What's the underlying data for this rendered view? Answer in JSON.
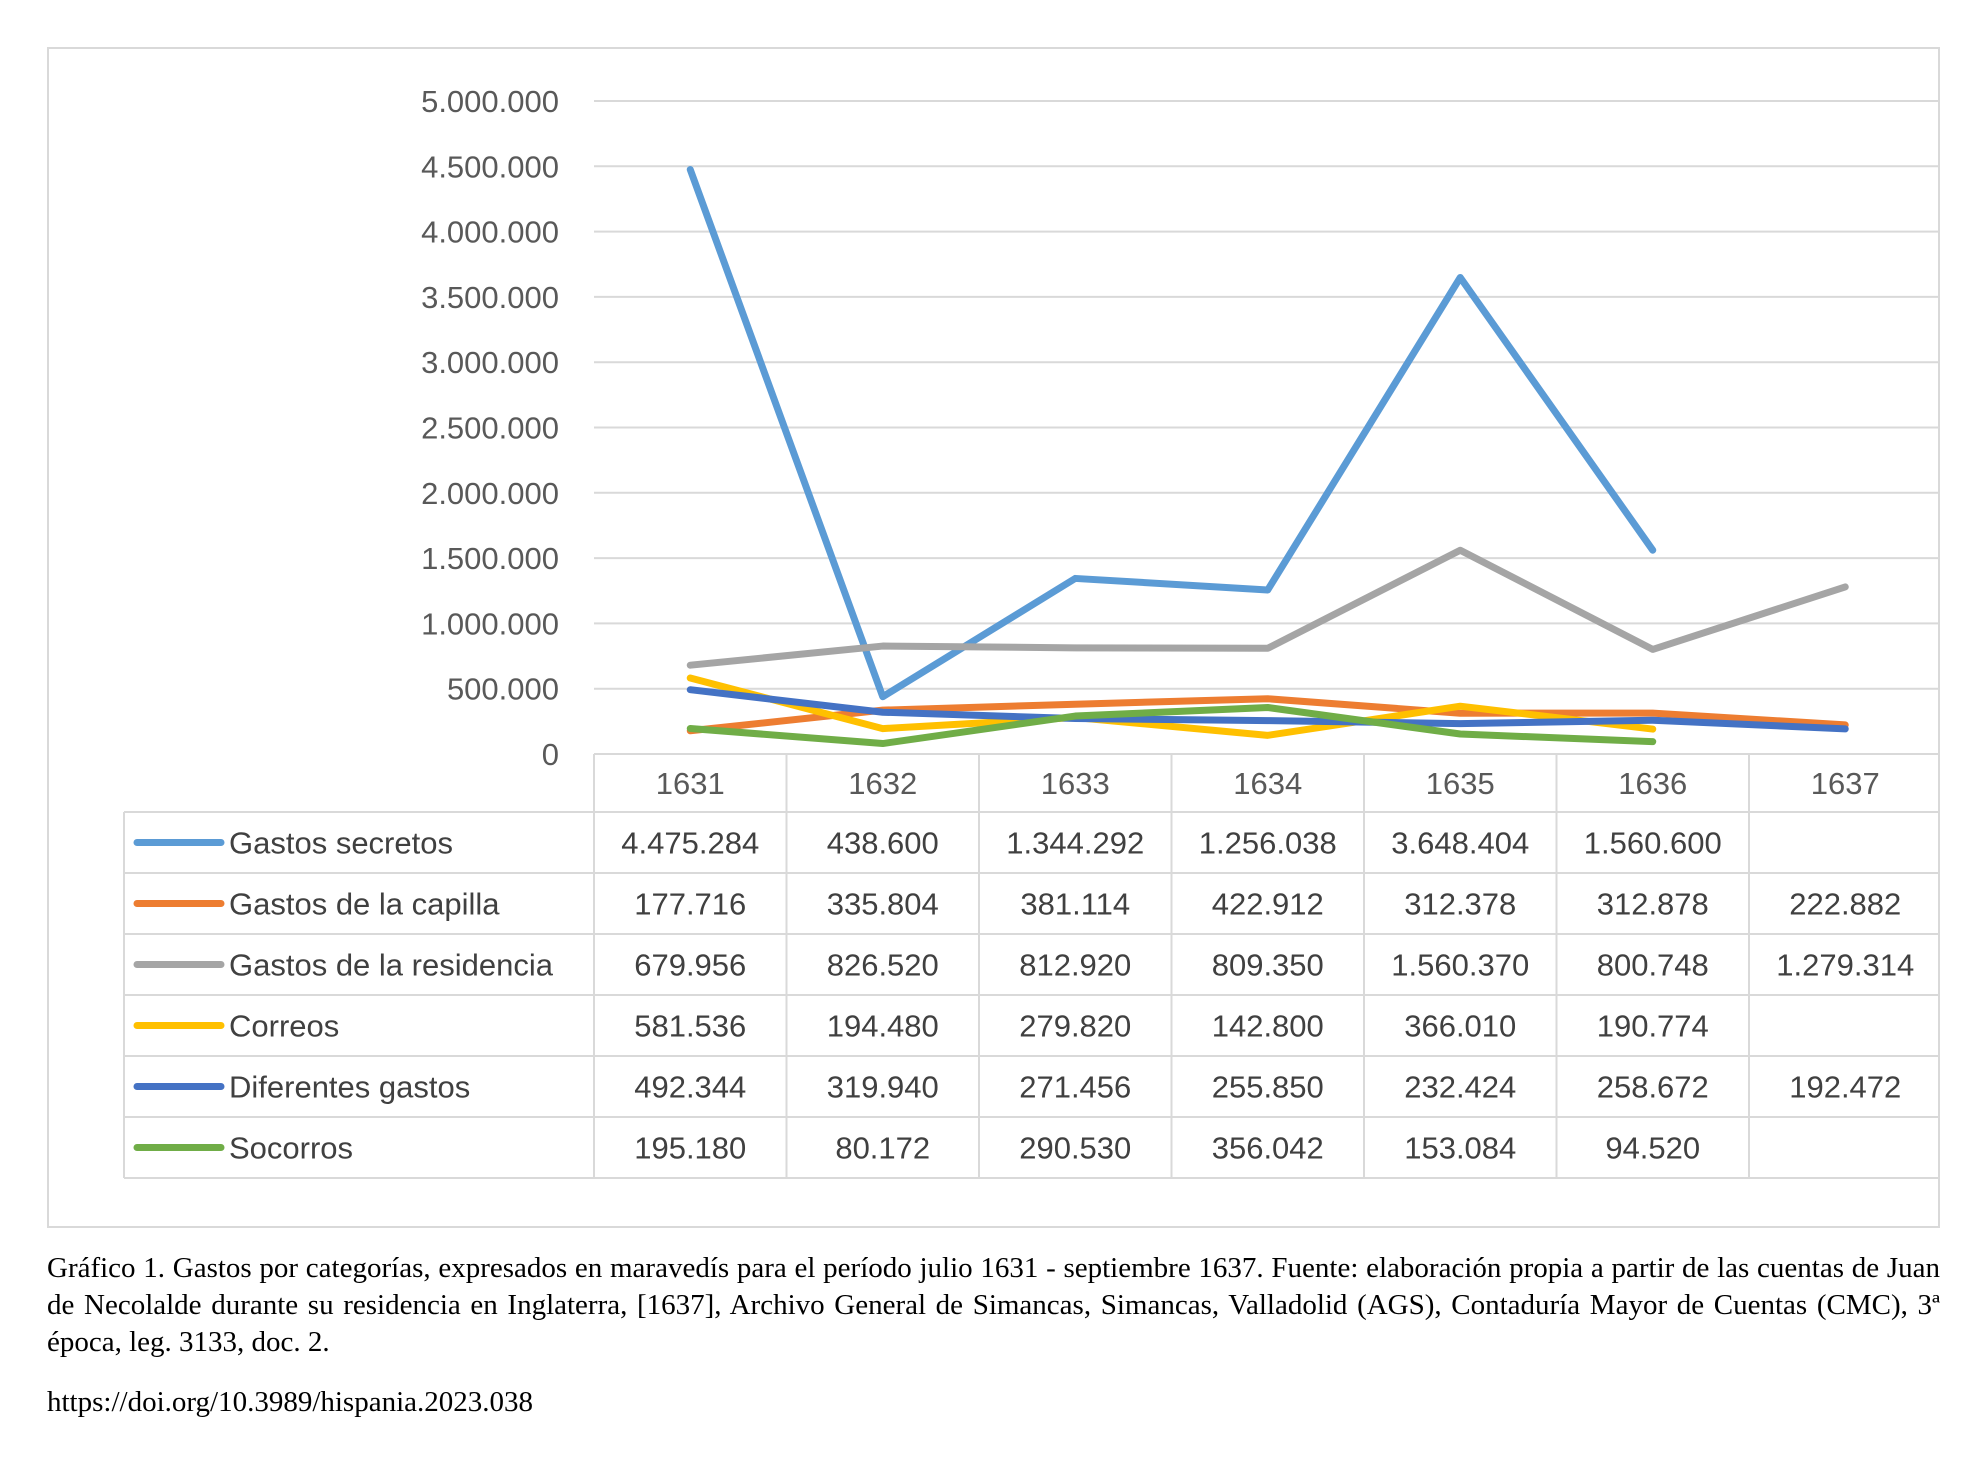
{
  "chart_data": {
    "type": "line",
    "categories": [
      "1631",
      "1632",
      "1633",
      "1634",
      "1635",
      "1636",
      "1637"
    ],
    "yticks": [
      "0",
      "500.000",
      "1.000.000",
      "1.500.000",
      "2.000.000",
      "2.500.000",
      "3.000.000",
      "3.500.000",
      "4.000.000",
      "4.500.000",
      "5.000.000"
    ],
    "ylim": [
      0,
      5000000
    ],
    "grid": true,
    "legend": "data-table",
    "series": [
      {
        "name": "Gastos secretos",
        "color": "#5b9bd5",
        "values": [
          4475284,
          438600,
          1344292,
          1256038,
          3648404,
          1560600,
          null
        ],
        "labels": [
          "4.475.284",
          "438.600",
          "1.344.292",
          "1.256.038",
          "3.648.404",
          "1.560.600",
          ""
        ]
      },
      {
        "name": "Gastos de la capilla",
        "color": "#ed7d31",
        "values": [
          177716,
          335804,
          381114,
          422912,
          312378,
          312878,
          222882
        ],
        "labels": [
          "177.716",
          "335.804",
          "381.114",
          "422.912",
          "312.378",
          "312.878",
          "222.882"
        ]
      },
      {
        "name": "Gastos de la residencia",
        "color": "#a5a5a5",
        "values": [
          679956,
          826520,
          812920,
          809350,
          1560370,
          800748,
          1279314
        ],
        "labels": [
          "679.956",
          "826.520",
          "812.920",
          "809.350",
          "1.560.370",
          "800.748",
          "1.279.314"
        ]
      },
      {
        "name": "Correos",
        "color": "#ffc000",
        "values": [
          581536,
          194480,
          279820,
          142800,
          366010,
          190774,
          null
        ],
        "labels": [
          "581.536",
          "194.480",
          "279.820",
          "142.800",
          "366.010",
          "190.774",
          ""
        ]
      },
      {
        "name": "Diferentes gastos",
        "color": "#4472c4",
        "values": [
          492344,
          319940,
          271456,
          255850,
          232424,
          258672,
          192472
        ],
        "labels": [
          "492.344",
          "319.940",
          "271.456",
          "255.850",
          "232.424",
          "258.672",
          "192.472"
        ]
      },
      {
        "name": "Socorros",
        "color": "#70ad47",
        "values": [
          195180,
          80172,
          290530,
          356042,
          153084,
          94520,
          null
        ],
        "labels": [
          "195.180",
          "80.172",
          "290.530",
          "356.042",
          "153.084",
          "94.520",
          ""
        ]
      }
    ]
  },
  "caption": "Gráfico 1. Gastos por categorías, expresados en maravedís para el período julio 1631 - septiembre 1637. Fuente: elaboración propia a partir de las cuentas de Juan de Necolalde durante su residencia en Inglaterra, [1637], Archivo General de Simancas, Simancas, Valladolid (AGS), Contaduría Mayor de Cuentas (CMC), 3ª época, leg. 3133, doc. 2.",
  "doi": "https://doi.org/10.3989/hispania.2023.038"
}
